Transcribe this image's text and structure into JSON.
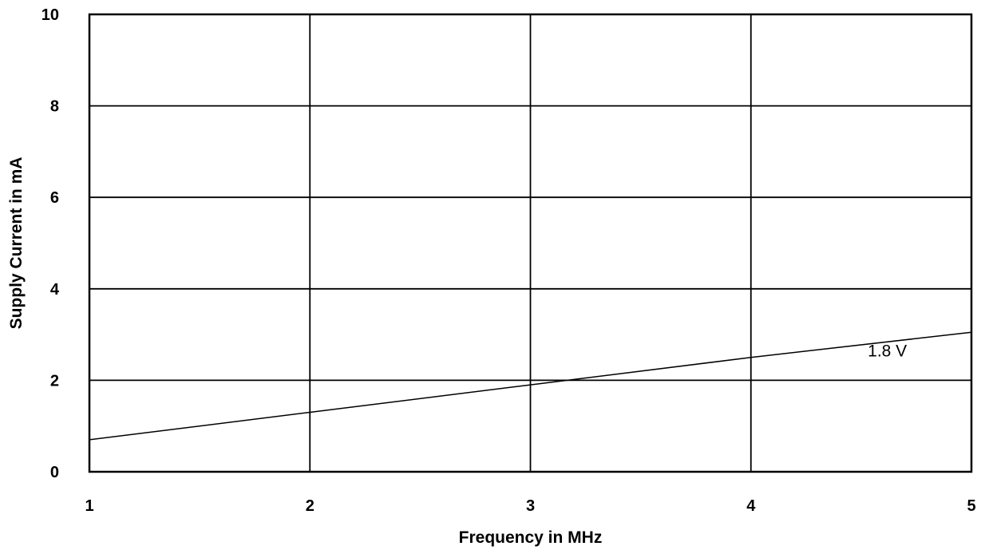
{
  "chart_data": {
    "type": "line",
    "title": "",
    "xlabel": "Frequency in MHz",
    "ylabel": "Supply Current in mA",
    "xlim": [
      1,
      5
    ],
    "ylim": [
      0,
      10
    ],
    "x_ticks": [
      1,
      2,
      3,
      4,
      5
    ],
    "y_ticks": [
      0,
      2,
      4,
      6,
      8,
      10
    ],
    "grid": true,
    "legend": "none",
    "series": [
      {
        "name": "1.8 V",
        "color": "#000000",
        "x": [
          1,
          2,
          3,
          4,
          5
        ],
        "y": [
          0.7,
          1.3,
          1.9,
          2.5,
          3.05
        ]
      }
    ]
  }
}
